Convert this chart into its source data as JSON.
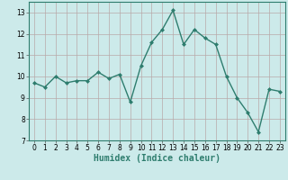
{
  "x": [
    0,
    1,
    2,
    3,
    4,
    5,
    6,
    7,
    8,
    9,
    10,
    11,
    12,
    13,
    14,
    15,
    16,
    17,
    18,
    19,
    20,
    21,
    22,
    23
  ],
  "y": [
    9.7,
    9.5,
    10.0,
    9.7,
    9.8,
    9.8,
    10.2,
    9.9,
    10.1,
    8.8,
    10.5,
    11.6,
    12.2,
    13.1,
    11.5,
    12.2,
    11.8,
    11.5,
    10.0,
    9.0,
    8.3,
    7.4,
    9.4,
    9.3
  ],
  "line_color": "#2e7d6e",
  "marker": "D",
  "marker_size": 2.0,
  "bg_color": "#cceaea",
  "grid_color": "#b8a8a8",
  "xlabel": "Humidex (Indice chaleur)",
  "xlim": [
    -0.5,
    23.5
  ],
  "ylim": [
    7,
    13.5
  ],
  "yticks": [
    7,
    8,
    9,
    10,
    11,
    12,
    13
  ],
  "xticks": [
    0,
    1,
    2,
    3,
    4,
    5,
    6,
    7,
    8,
    9,
    10,
    11,
    12,
    13,
    14,
    15,
    16,
    17,
    18,
    19,
    20,
    21,
    22,
    23
  ],
  "tick_fontsize": 5.5,
  "xlabel_fontsize": 7.0,
  "line_width": 1.0
}
